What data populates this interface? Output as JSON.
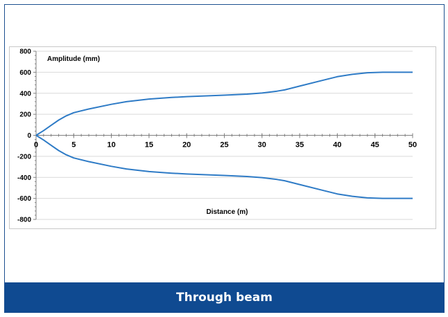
{
  "footer": {
    "caption": "Through beam"
  },
  "colors": {
    "line": "#2e7bc6",
    "footer": "#0f4a91",
    "border": "#1b4f8f",
    "grid": "#d9d9d9"
  },
  "chart_data": {
    "type": "line",
    "title": "",
    "ylabel": "Amplitude (mm)",
    "xlabel": "Distance (m)",
    "xlim": [
      0,
      50
    ],
    "ylim": [
      -800,
      800
    ],
    "xticks": [
      0,
      5,
      10,
      15,
      20,
      25,
      30,
      35,
      40,
      45,
      50
    ],
    "yticks": [
      800,
      600,
      400,
      200,
      0,
      -200,
      -400,
      -600,
      -800
    ],
    "grid": true,
    "series": [
      {
        "values": [
          [
            0,
            0
          ],
          [
            1,
            45
          ],
          [
            2,
            95
          ],
          [
            3,
            145
          ],
          [
            4,
            185
          ],
          [
            5,
            215
          ],
          [
            7,
            250
          ],
          [
            10,
            295
          ],
          [
            12,
            320
          ],
          [
            15,
            345
          ],
          [
            18,
            360
          ],
          [
            20,
            368
          ],
          [
            25,
            382
          ],
          [
            28,
            392
          ],
          [
            30,
            402
          ],
          [
            32,
            420
          ],
          [
            33,
            432
          ],
          [
            35,
            468
          ],
          [
            38,
            522
          ],
          [
            40,
            558
          ],
          [
            42,
            580
          ],
          [
            44,
            595
          ],
          [
            46,
            600
          ],
          [
            50,
            600
          ]
        ]
      },
      {
        "values": [
          [
            0,
            0
          ],
          [
            1,
            -45
          ],
          [
            2,
            -95
          ],
          [
            3,
            -145
          ],
          [
            4,
            -185
          ],
          [
            5,
            -215
          ],
          [
            7,
            -250
          ],
          [
            10,
            -295
          ],
          [
            12,
            -320
          ],
          [
            15,
            -345
          ],
          [
            18,
            -360
          ],
          [
            20,
            -368
          ],
          [
            25,
            -382
          ],
          [
            28,
            -392
          ],
          [
            30,
            -402
          ],
          [
            32,
            -420
          ],
          [
            33,
            -432
          ],
          [
            35,
            -468
          ],
          [
            38,
            -522
          ],
          [
            40,
            -558
          ],
          [
            42,
            -580
          ],
          [
            44,
            -595
          ],
          [
            46,
            -600
          ],
          [
            50,
            -600
          ]
        ]
      }
    ]
  }
}
